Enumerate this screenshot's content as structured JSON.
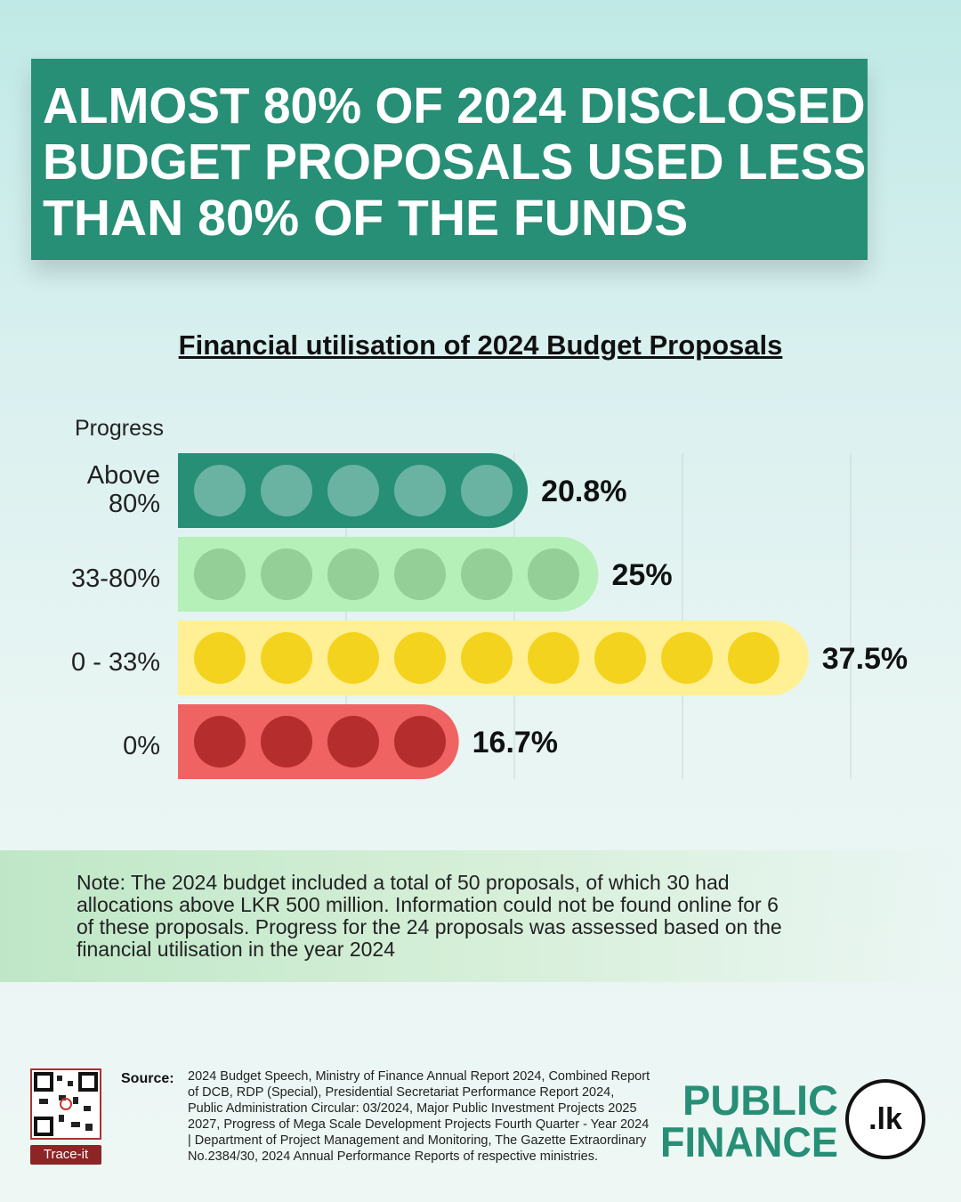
{
  "headline": [
    "ALMOST 80% OF 2024 DISCLOSED",
    "BUDGET PROPOSALS USED LESS",
    "THAN 80% OF THE FUNDS"
  ],
  "chart_data": {
    "type": "bar",
    "title": "Financial utilisation of 2024 Budget Proposals",
    "ylabel": "Progress",
    "categories": [
      "Above 80%",
      "33-80%",
      "0 - 33%",
      "0%"
    ],
    "values": [
      20.8,
      25,
      37.5,
      16.7
    ],
    "value_labels": [
      "20.8%",
      "25%",
      "37.5%",
      "16.7%"
    ],
    "proposal_counts": [
      5,
      6,
      9,
      4
    ],
    "xlim": [
      0,
      40
    ],
    "grid": true,
    "colors": {
      "bar": [
        "#268f76",
        "#b5f0b9",
        "#fff096",
        "#f06363"
      ],
      "dot": [
        "#6ab3a3",
        "#94cf97",
        "#f4d31f",
        "#b52e2d"
      ]
    }
  },
  "note": "Note: The 2024 budget included a total of 50 proposals, of which 30 had allocations above LKR 500 million. Information could not be found online for 6 of these proposals. Progress for the 24 proposals was assessed based on the financial utilisation in the year 2024",
  "source_label": "Source:",
  "source": "2024 Budget Speech, Ministry of Finance Annual Report 2024, Combined Report of DCB, RDP (Special), Presidential Secretariat Performance Report 2024, Public Administration Circular: 03/2024, Major Public Investment Projects 2025 2027, Progress of Mega Scale Development Projects Fourth Quarter - Year 2024 | Department of Project Management and Monitoring, The Gazette Extraordinary No.2384/30, 2024 Annual Performance Reports of respective ministries.",
  "qr_button": "Trace-it",
  "logo": {
    "line1": "PUBLIC",
    "line2": "FINANCE",
    "seal": ".lk"
  }
}
